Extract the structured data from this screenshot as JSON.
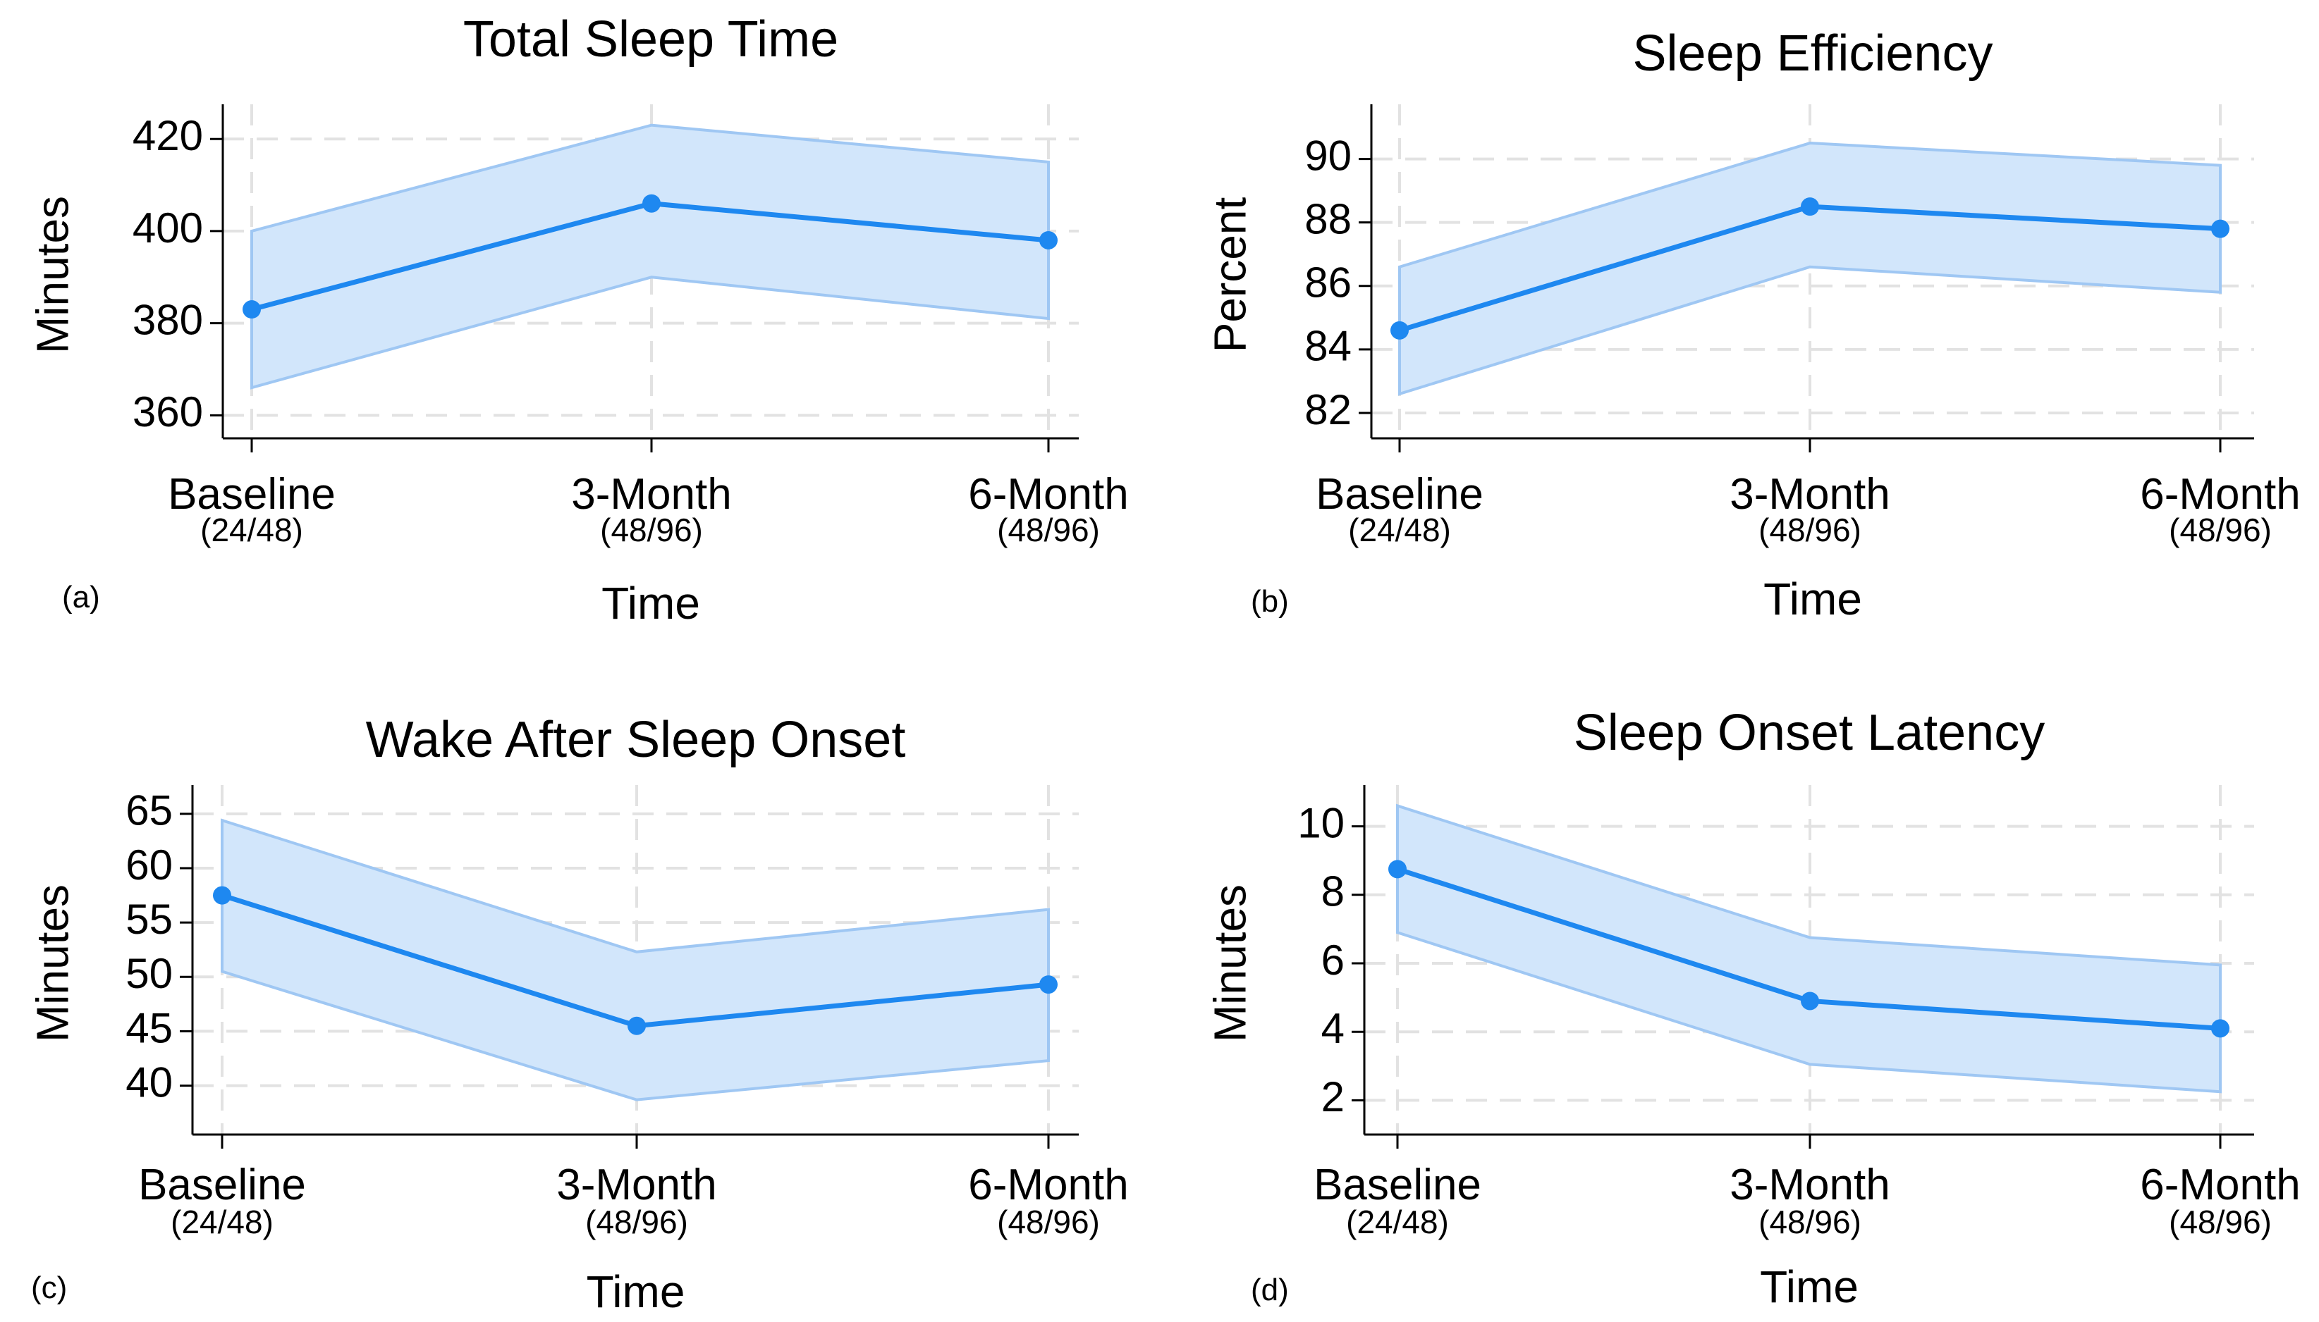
{
  "chart_data": [
    {
      "type": "line",
      "panel": "(a)",
      "title": "Total Sleep Time",
      "xlabel": "Time",
      "ylabel": "Minutes",
      "categories": [
        "Baseline",
        "3-Month",
        "6-Month"
      ],
      "category_sub": [
        "(24/48)",
        "(48/96)",
        "(48/96)"
      ],
      "values": [
        383,
        406,
        398
      ],
      "ci_lower": [
        366,
        390,
        381
      ],
      "ci_upper": [
        400,
        423,
        415
      ],
      "ylim": [
        355,
        426
      ],
      "yticks": [
        360,
        380,
        400,
        420
      ],
      "grid": true
    },
    {
      "type": "line",
      "panel": "(b)",
      "title": "Sleep Efficiency",
      "xlabel": "Time",
      "ylabel": "Percent",
      "categories": [
        "Baseline",
        "3-Month",
        "6-Month"
      ],
      "category_sub": [
        "(24/48)",
        "(48/96)",
        "(48/96)"
      ],
      "values": [
        84.6,
        88.5,
        87.8
      ],
      "ci_lower": [
        82.6,
        86.6,
        85.8
      ],
      "ci_upper": [
        86.6,
        90.5,
        89.8
      ],
      "ylim": [
        81.2,
        91.5
      ],
      "yticks": [
        82,
        84,
        86,
        88,
        90
      ],
      "grid": true
    },
    {
      "type": "line",
      "panel": "(c)",
      "title": "Wake After Sleep Onset",
      "xlabel": "Time",
      "ylabel": "Minutes",
      "categories": [
        "Baseline",
        "3-Month",
        "6-Month"
      ],
      "category_sub": [
        "(24/48)",
        "(48/96)",
        "(48/96)"
      ],
      "values": [
        57.5,
        45.5,
        49.3
      ],
      "ci_lower": [
        50.5,
        38.7,
        42.3
      ],
      "ci_upper": [
        64.4,
        52.3,
        56.2
      ],
      "ylim": [
        35.5,
        67
      ],
      "yticks": [
        40,
        45,
        50,
        55,
        60,
        65
      ],
      "grid": true
    },
    {
      "type": "line",
      "panel": "(d)",
      "title": "Sleep Onset Latency",
      "xlabel": "Time",
      "ylabel": "Minutes",
      "categories": [
        "Baseline",
        "3-Month",
        "6-Month"
      ],
      "category_sub": [
        "(24/48)",
        "(48/96)",
        "(48/96)"
      ],
      "values": [
        8.75,
        4.9,
        4.1
      ],
      "ci_lower": [
        6.9,
        3.05,
        2.25
      ],
      "ci_upper": [
        10.6,
        6.75,
        5.95
      ],
      "ylim": [
        1.0,
        11.0
      ],
      "yticks": [
        2,
        4,
        6,
        8,
        10
      ],
      "grid": true
    }
  ],
  "colors": {
    "line": "#1e88f0",
    "band_fill": "#d2e6fb",
    "band_edge": "#9fc7f3",
    "grid": "#e2e2e2"
  }
}
